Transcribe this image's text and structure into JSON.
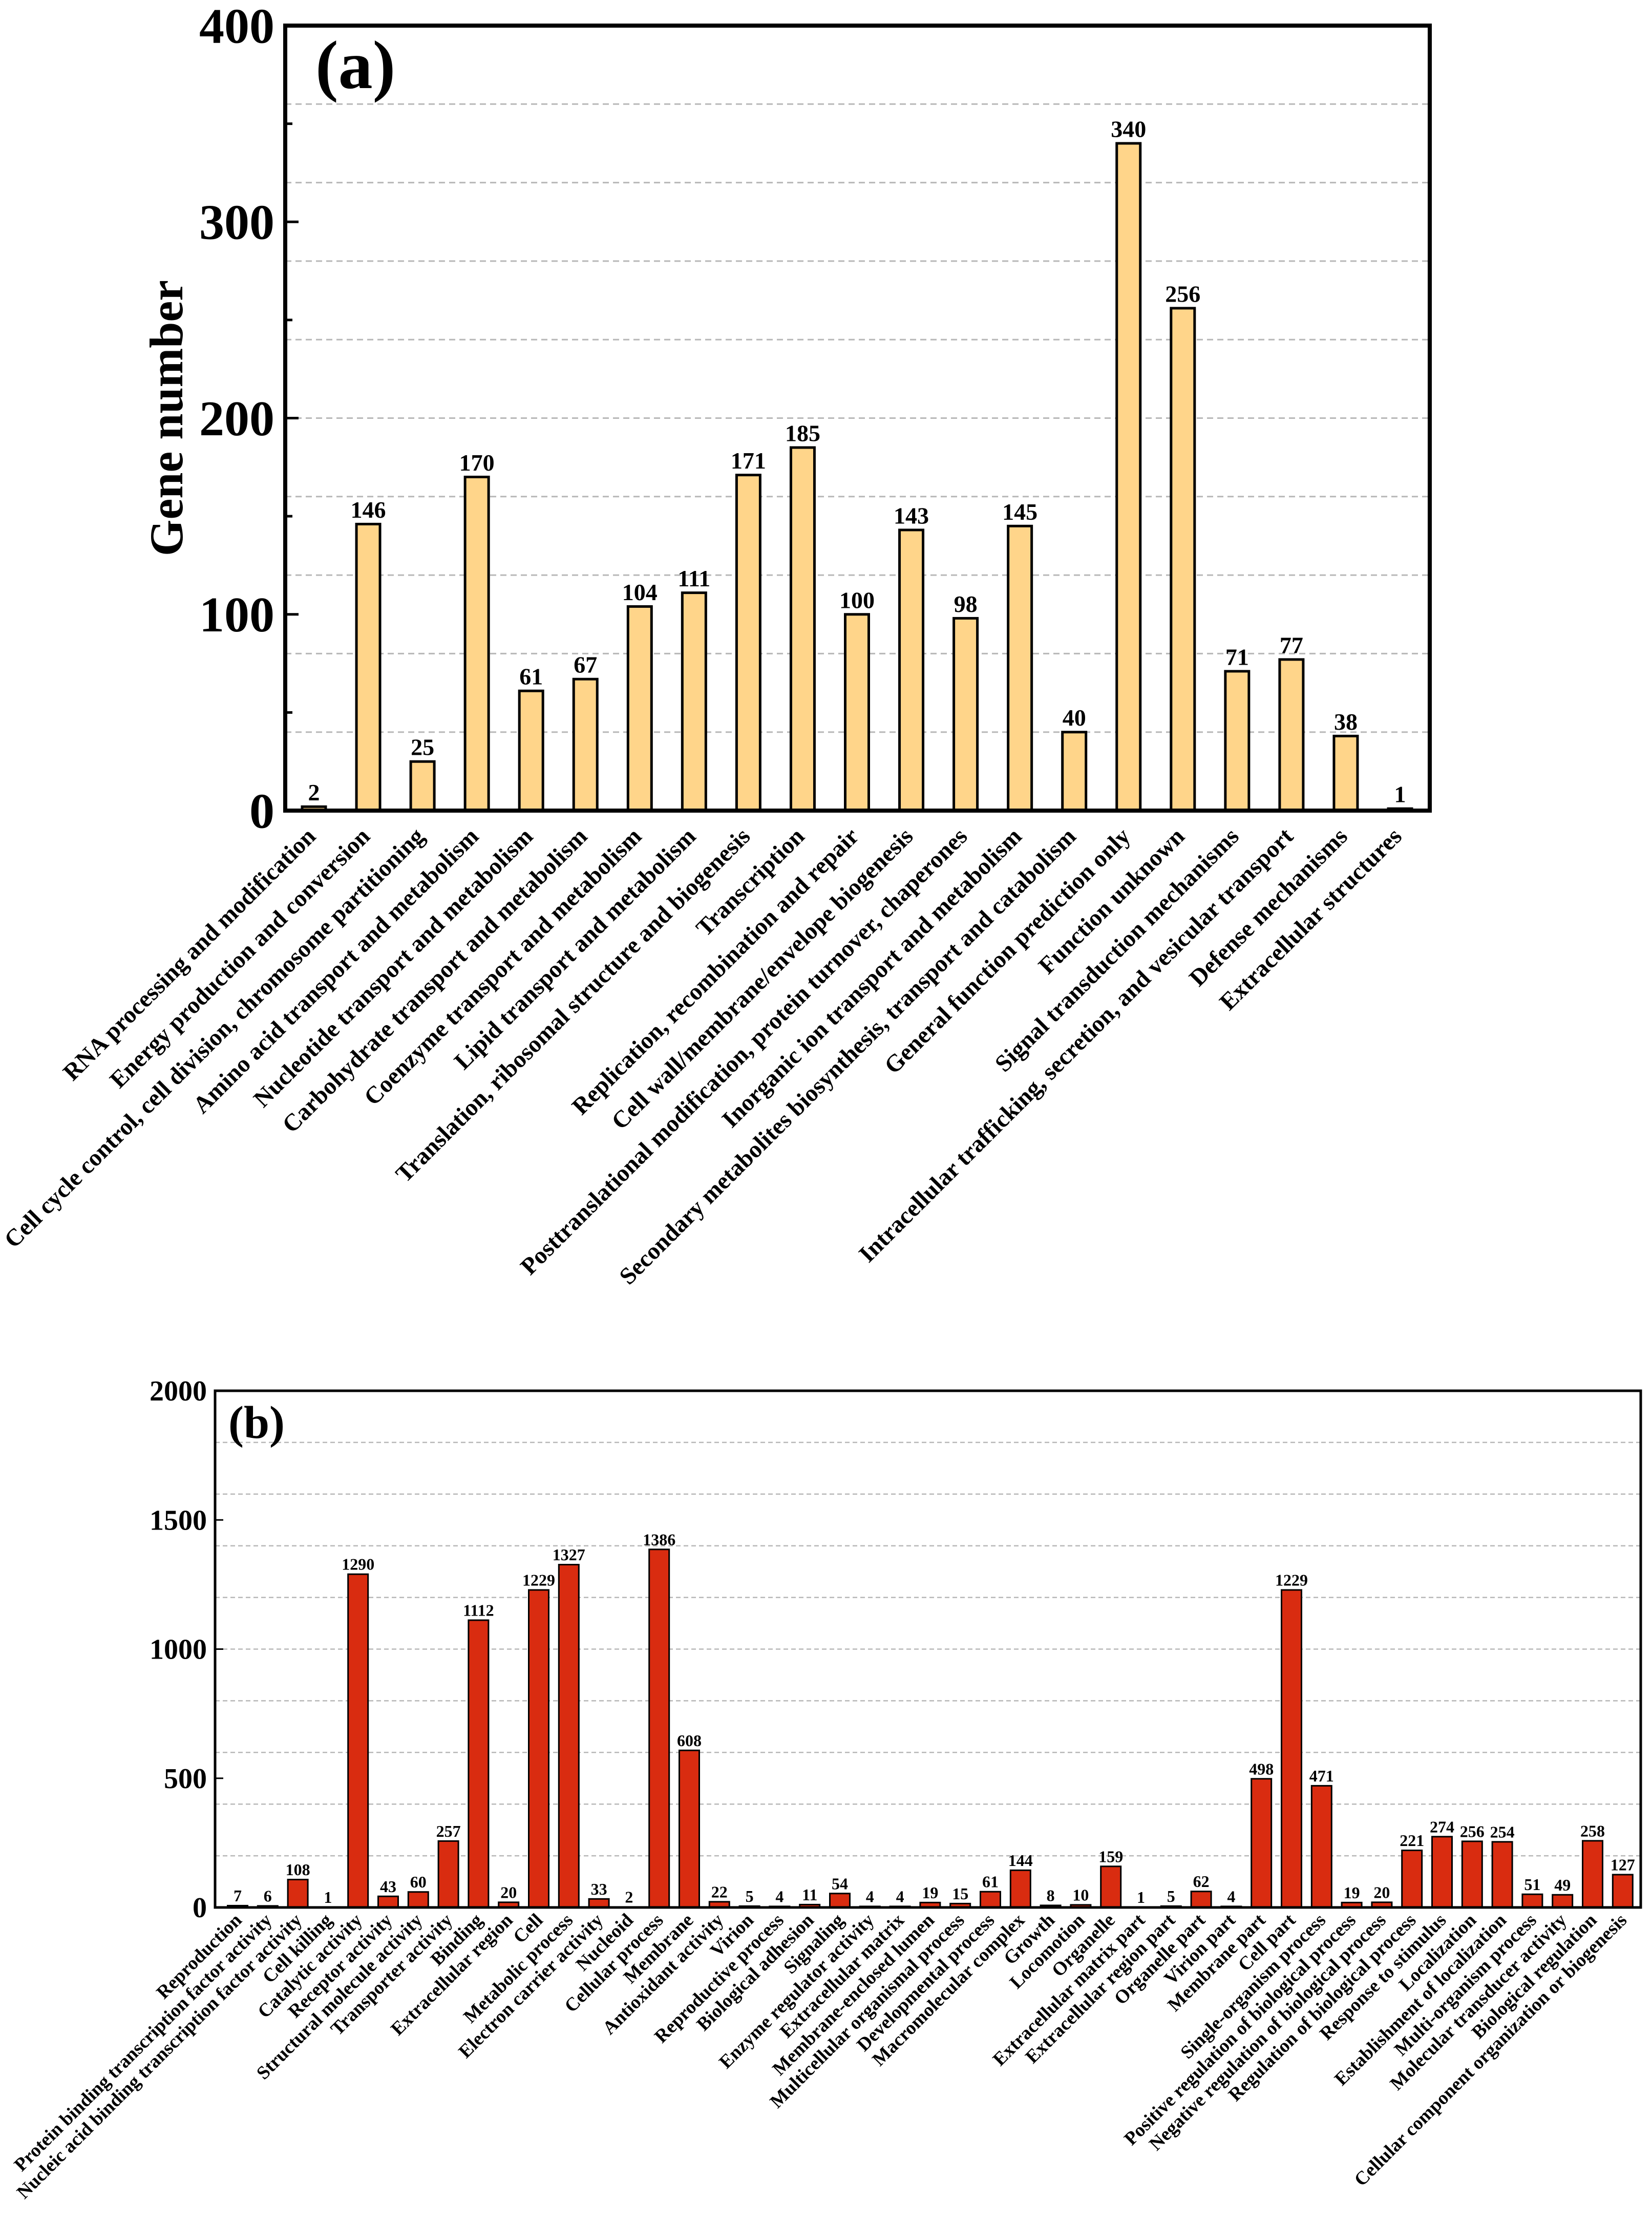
{
  "chart_data": [
    {
      "type": "bar",
      "panel_label": "(a)",
      "ylabel": "Gene number",
      "ylim": [
        0,
        400
      ],
      "yticks": [
        0,
        100,
        200,
        300,
        400
      ],
      "minor_yticks": [
        50,
        150,
        250,
        350
      ],
      "grid": {
        "on": true,
        "interval": 40
      },
      "bar_color": "#FFD58A",
      "edge_color": "#000000",
      "categories": [
        "RNA processing and modification",
        "Energy production and conversion",
        "Cell cycle control, cell division, chromosome partitioning",
        "Amino acid transport and metabolism",
        "Nucleotide transport and metabolism",
        "Carbohydrate transport and metabolism",
        "Coenzyme transport and metabolism",
        "Lipid transport and metabolism",
        "Translation, ribosomal structure and biogenesis",
        "Transcription",
        "Replication, recombination and repair",
        "Cell wall/membrane/envelope biogenesis",
        "Posttranslational modification, protein turnover, chaperones",
        "Inorganic ion transport and metabolism",
        "Secondary metabolites biosynthesis, transport and catabolism",
        "General function prediction only",
        "Function unknown",
        "Signal transduction mechanisms",
        "Intracellular trafficking, secretion, and vesicular transport",
        "Defense mechanisms",
        "Extracellular structures"
      ],
      "values": [
        2,
        146,
        25,
        170,
        61,
        67,
        104,
        111,
        171,
        185,
        100,
        143,
        98,
        145,
        40,
        340,
        256,
        71,
        77,
        38,
        1
      ]
    },
    {
      "type": "bar",
      "panel_label": "(b)",
      "ylim": [
        0,
        2000
      ],
      "yticks": [
        0,
        500,
        1000,
        1500,
        2000
      ],
      "grid": {
        "on": true,
        "interval": 200
      },
      "bar_color": "#D92C10",
      "edge_color": "#000000",
      "categories": [
        "Reproduction",
        "Protein binding transcription factor activity",
        "Nucleic acid binding transcription factor activity",
        "Cell killing",
        "Catalytic activity",
        "Receptor activity",
        "Structural molecule activity",
        "Transporter activity",
        "Binding",
        "Extracellular region",
        "Cell",
        "Metabolic process",
        "Electron carrier activity",
        "Nucleoid",
        "Cellular process",
        "Membrane",
        "Antioxidant activity",
        "Virion",
        "Reproductive process",
        "Biological adhesion",
        "Signaling",
        "Enzyme regulator activity",
        "Extracellular matrix",
        "Membrane-enclosed lumen",
        "Multicellular organismal process",
        "Developmental process",
        "Macromolecular complex",
        "Growth",
        "Locomotion",
        "Organelle",
        "Extracellular matrix part",
        "Extracellular region part",
        "Organelle part",
        "Virion part",
        "Membrane part",
        "Cell part",
        "Single-organism process",
        "Positive regulation of biological process",
        "Negative regulation of biological process",
        "Regulation of biological process",
        "Response to stimulus",
        "Localization",
        "Establishment of localization",
        "Multi-organism process",
        "Molecular transducer activity",
        "Biological regulation",
        "Cellular component organization or biogenesis"
      ],
      "values": [
        7,
        6,
        108,
        1,
        1290,
        43,
        60,
        257,
        1112,
        20,
        1229,
        1327,
        33,
        2,
        1386,
        608,
        22,
        5,
        4,
        11,
        54,
        4,
        4,
        19,
        15,
        61,
        144,
        8,
        10,
        159,
        1,
        5,
        62,
        4,
        498,
        1229,
        471,
        19,
        20,
        221,
        274,
        256,
        254,
        51,
        49,
        258,
        127
      ]
    }
  ]
}
